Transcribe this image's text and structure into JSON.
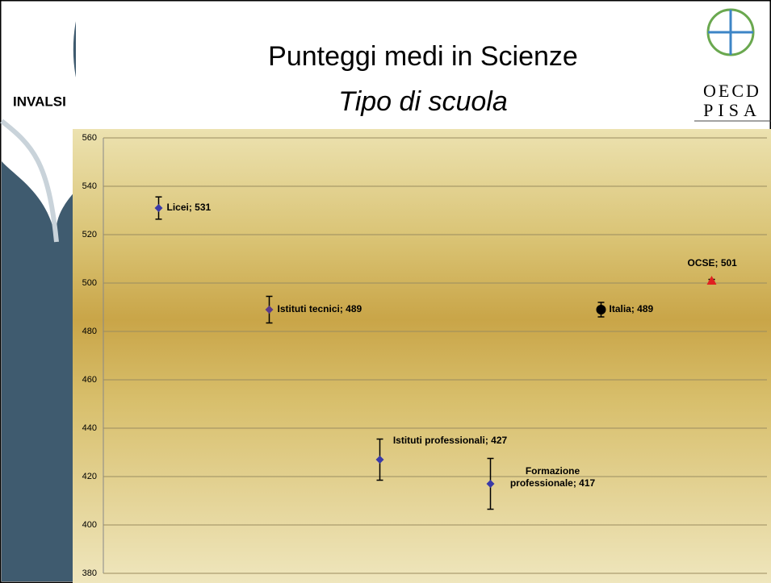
{
  "logo": {
    "left": "INVALSI",
    "top": "OECD",
    "bottom": "PISA"
  },
  "chart_data": {
    "type": "errorbar",
    "title": "Punteggi medi in Scienze",
    "subtitle": "Tipo di scuola",
    "values": [
      531,
      489,
      427,
      417,
      489,
      501
    ],
    "errors": [
      4.6,
      5.5,
      8.5,
      10.5,
      3,
      0.5
    ],
    "value_labels": [
      "Licei; 531",
      "Istituti tecnici; 489",
      "Istituti professionali; 427",
      "Formazione professionale; 417",
      "Italia; 489",
      "OCSE; 501"
    ],
    "colors": [
      "#3a3aa8",
      "#5a3a8a",
      "#3a3aa8",
      "#3a3aa8",
      "#000000",
      "#e02020"
    ],
    "markers": [
      "diamond",
      "diamond",
      "diamond",
      "diamond",
      "circle",
      "triangle"
    ],
    "ylim": [
      380,
      560
    ],
    "yticks": [
      380,
      400,
      420,
      440,
      460,
      480,
      500,
      520,
      540,
      560
    ],
    "grid": true
  }
}
